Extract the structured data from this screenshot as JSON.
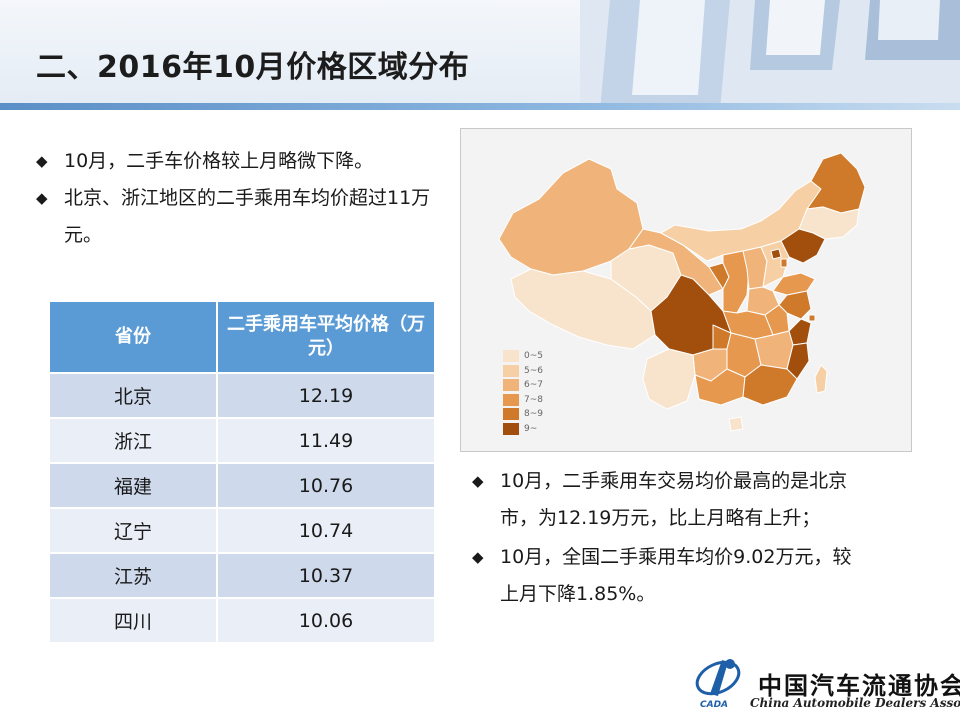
{
  "slide": {
    "title": "二、2016年10月价格区域分布"
  },
  "bullets_left": [
    {
      "text": "10月，二手车价格较上月略微下降。"
    },
    {
      "text": "北京、浙江地区的二手乘用车均价超过11万元。"
    }
  ],
  "bullet_icon": "diamond-bullet-icon",
  "table": {
    "headers": [
      "省份",
      "二手乘用车平均价格（万元）"
    ],
    "rows": [
      {
        "province": "北京",
        "price": "12.19"
      },
      {
        "province": "浙江",
        "price": "11.49"
      },
      {
        "province": "福建",
        "price": "10.76"
      },
      {
        "province": "辽宁",
        "price": "10.74"
      },
      {
        "province": "江苏",
        "price": "10.37"
      },
      {
        "province": "四川",
        "price": "10.06"
      }
    ],
    "header_color": "#5b9bd5",
    "row_color_odd": "#cfd9ec",
    "row_color_even": "#e9eef7"
  },
  "map": {
    "legend": [
      {
        "label": "0~5",
        "color": "#f8e4cc"
      },
      {
        "label": "5~6",
        "color": "#f6cfa4"
      },
      {
        "label": "6~7",
        "color": "#f0b47a"
      },
      {
        "label": "7~8",
        "color": "#e7984f"
      },
      {
        "label": "8~9",
        "color": "#cf7a2a"
      },
      {
        "label": "9~",
        "color": "#a24f0d"
      }
    ]
  },
  "bullets_right": [
    {
      "text": "10月，二手乘用车交易均价最高的是北京市，为12.19万元，比上月略有上升；"
    },
    {
      "text": "10月，全国二手乘用车均价9.02万元，较上月下降1.85%。"
    }
  ],
  "logo": {
    "name_cn": "中国汽车流通协会",
    "name_en": "China Automobile Dealers Association",
    "abbr": "CADA",
    "brand_color": "#1f5fa8"
  }
}
